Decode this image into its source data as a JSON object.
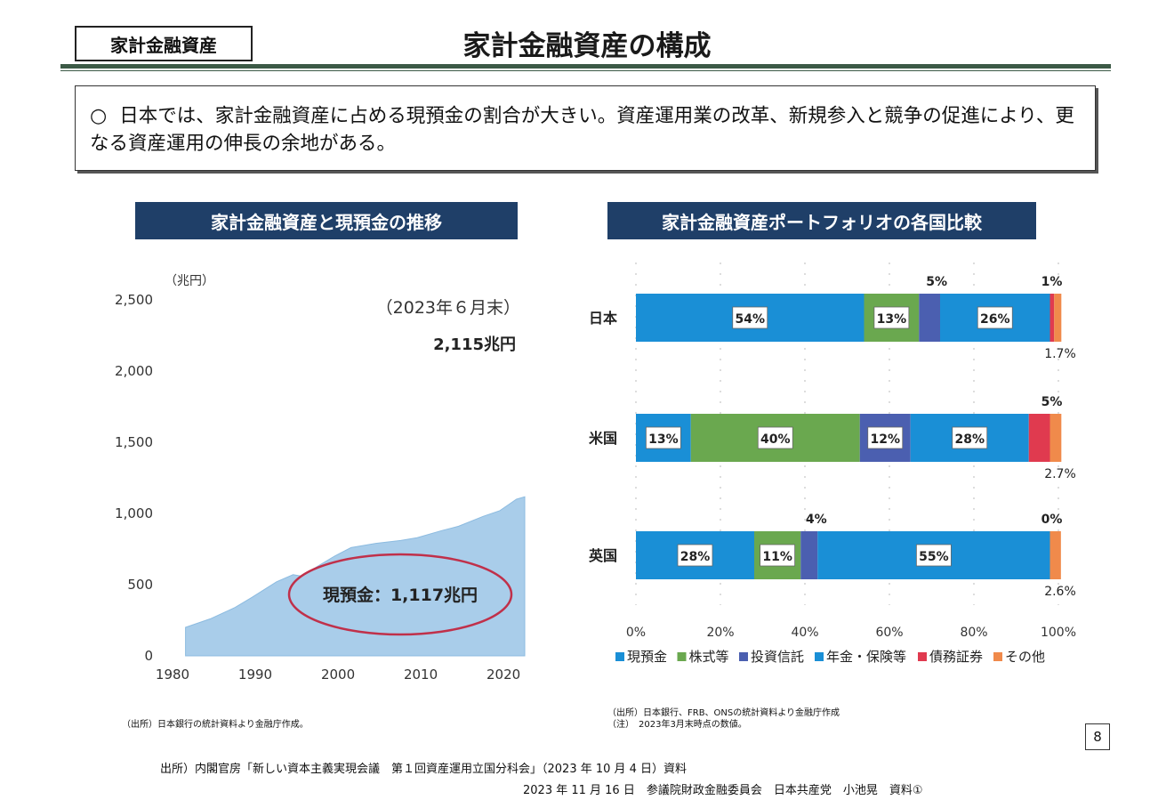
{
  "header": {
    "tag": "家計金融資産",
    "title": "家計金融資産の構成"
  },
  "summary": {
    "bullet": "○",
    "text": "日本では、家計金融資産に占める現預金の割合が大きい。資産運用業の改革、新規参入と競争の促進により、更なる資産運用の伸長の余地がある。"
  },
  "left_panel": {
    "title": "家計金融資産と現預金の推移",
    "unit": "（兆円）",
    "date_note": "（2023年６月末）",
    "total_label": "2,115兆円",
    "cash_label": "現預金：1,117兆円",
    "source": "（出所）日本銀行の統計資料より金融庁作成。"
  },
  "right_panel": {
    "title": "家計金融資産ポートフォリオの各国比較",
    "source_line1": "（出所）日本銀行、FRB、ONSの統計資料より金融庁作成",
    "source_line2": "（注）　2023年3月末時点の数値。"
  },
  "chart_data": [
    {
      "type": "area",
      "title": "家計金融資産と現預金の推移",
      "ylabel": "（兆円）",
      "ylim": [
        0,
        2500
      ],
      "yticks": [
        "0",
        "500",
        "1,000",
        "1,500",
        "2,000",
        "2,500"
      ],
      "xticks": [
        "1980",
        "1990",
        "2000",
        "2010",
        "2020"
      ],
      "xlim": [
        1980,
        2023
      ],
      "series": [
        {
          "name": "現預金",
          "x": [
            1982,
            1985,
            1988,
            1990,
            1993,
            1995,
            1996,
            1998,
            2000,
            2002,
            2005,
            2008,
            2010,
            2013,
            2015,
            2018,
            2020,
            2021,
            2022,
            2023
          ],
          "values": [
            200,
            260,
            340,
            410,
            520,
            570,
            560,
            630,
            700,
            760,
            790,
            810,
            830,
            880,
            910,
            980,
            1020,
            1060,
            1100,
            1117
          ]
        }
      ],
      "color": "#a9cdea"
    },
    {
      "type": "bar",
      "stacked": "horizontal-100",
      "title": "家計金融資産ポートフォリオの各国比較",
      "categories": [
        "日本",
        "米国",
        "英国"
      ],
      "xticks": [
        "0%",
        "20%",
        "40%",
        "60%",
        "80%",
        "100%"
      ],
      "series": [
        {
          "name": "現預金",
          "color": "#1a8fd6",
          "values": [
            54,
            13,
            28
          ],
          "labels": [
            "54%",
            "13%",
            "28%"
          ]
        },
        {
          "name": "株式等",
          "color": "#6aa84f",
          "values": [
            13,
            40,
            11
          ],
          "labels": [
            "13%",
            "40%",
            "11%"
          ]
        },
        {
          "name": "投資信託",
          "color": "#4b5fb0",
          "values": [
            5,
            12,
            4
          ],
          "labels": [
            "5%",
            "12%",
            "4%"
          ]
        },
        {
          "name": "年金・保険等",
          "color": "#1a8fd6",
          "values": [
            26,
            28,
            55
          ],
          "labels": [
            "26%",
            "28%",
            "55%"
          ]
        },
        {
          "name": "債務証券",
          "color": "#e03a4f",
          "values": [
            1,
            5,
            0
          ],
          "labels": [
            "1%",
            "5%",
            "0%"
          ]
        },
        {
          "name": "その他",
          "color": "#f08a4b",
          "values": [
            1.7,
            2.7,
            2.6
          ],
          "labels": [
            "1.7%",
            "2.7%",
            "2.6%"
          ]
        }
      ]
    }
  ],
  "footer": {
    "source": "出所）内閣官房「新しい資本主義実現会議　第１回資産運用立国分科会」（2023 年 10 月 4 日）資料",
    "attribution": "2023 年 11 月 16 日　参議院財政金融委員会　日本共産党　小池晃　資料①",
    "page_number": "8"
  }
}
